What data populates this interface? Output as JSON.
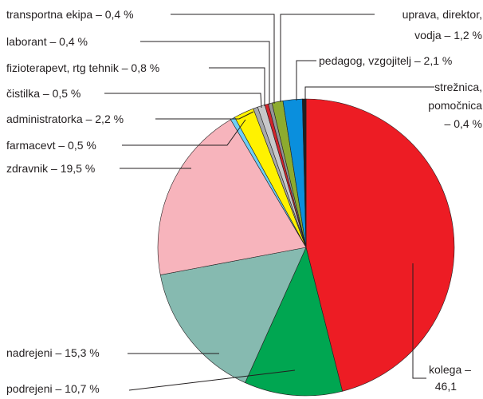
{
  "chart_data": {
    "type": "pie",
    "labels": [
      [
        "kolega –",
        "46,1"
      ],
      [
        "podrejeni – 10,7 %"
      ],
      [
        "nadrejeni – 15,3 %"
      ],
      [
        "zdravnik – 19,5 %"
      ],
      [
        "farmacevt – 0,5 %"
      ],
      [
        "administratorka – 2,2 %"
      ],
      [
        "čistilka – 0,5 %"
      ],
      [
        "fizioterapevt, rtg tehnik – 0,8 %"
      ],
      [
        "laborant – 0,4 %"
      ],
      [
        "transportna ekipa – 0,4 %"
      ],
      [
        "uprava, direktor,",
        "vodja – 1,2 %"
      ],
      [
        "pedagog, vzgojitelj – 2,1 %"
      ],
      [
        "strežnica,",
        "pomočnica",
        "– 0,4 %"
      ]
    ],
    "values": [
      46.1,
      10.7,
      15.3,
      19.5,
      0.5,
      2.2,
      0.5,
      0.8,
      0.4,
      0.4,
      1.2,
      2.1,
      0.4
    ],
    "colors": [
      "#ed1c24",
      "#00a651",
      "#86bab0",
      "#f7b4bc",
      "#6dcff6",
      "#fff200",
      "#a7a9ac",
      "#c7c8ca",
      "#d2232a",
      "#939598",
      "#8dab2f",
      "#0a8fdd",
      "#231f20"
    ]
  }
}
